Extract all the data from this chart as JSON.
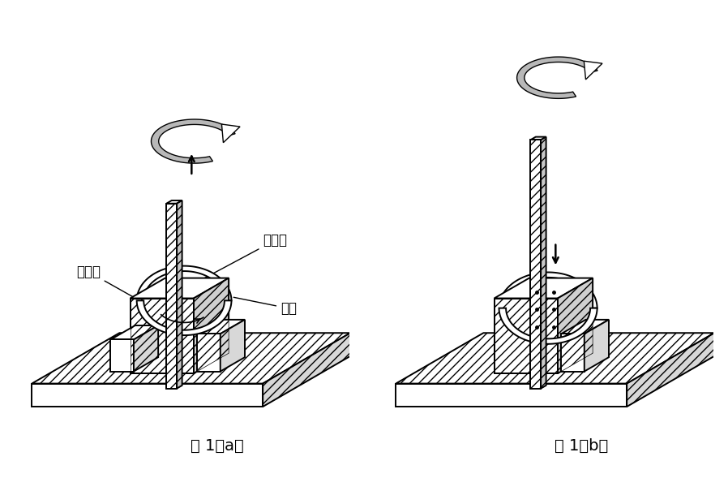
{
  "bg_color": "#ffffff",
  "line_color": "#000000",
  "title_a": "图 1（a）",
  "title_b": "图 1（b）",
  "label_stirpin": "搅拌针",
  "label_sleeve": "套筒",
  "label_clamp": "加紧环",
  "fig_width": 8.98,
  "fig_height": 6.21
}
